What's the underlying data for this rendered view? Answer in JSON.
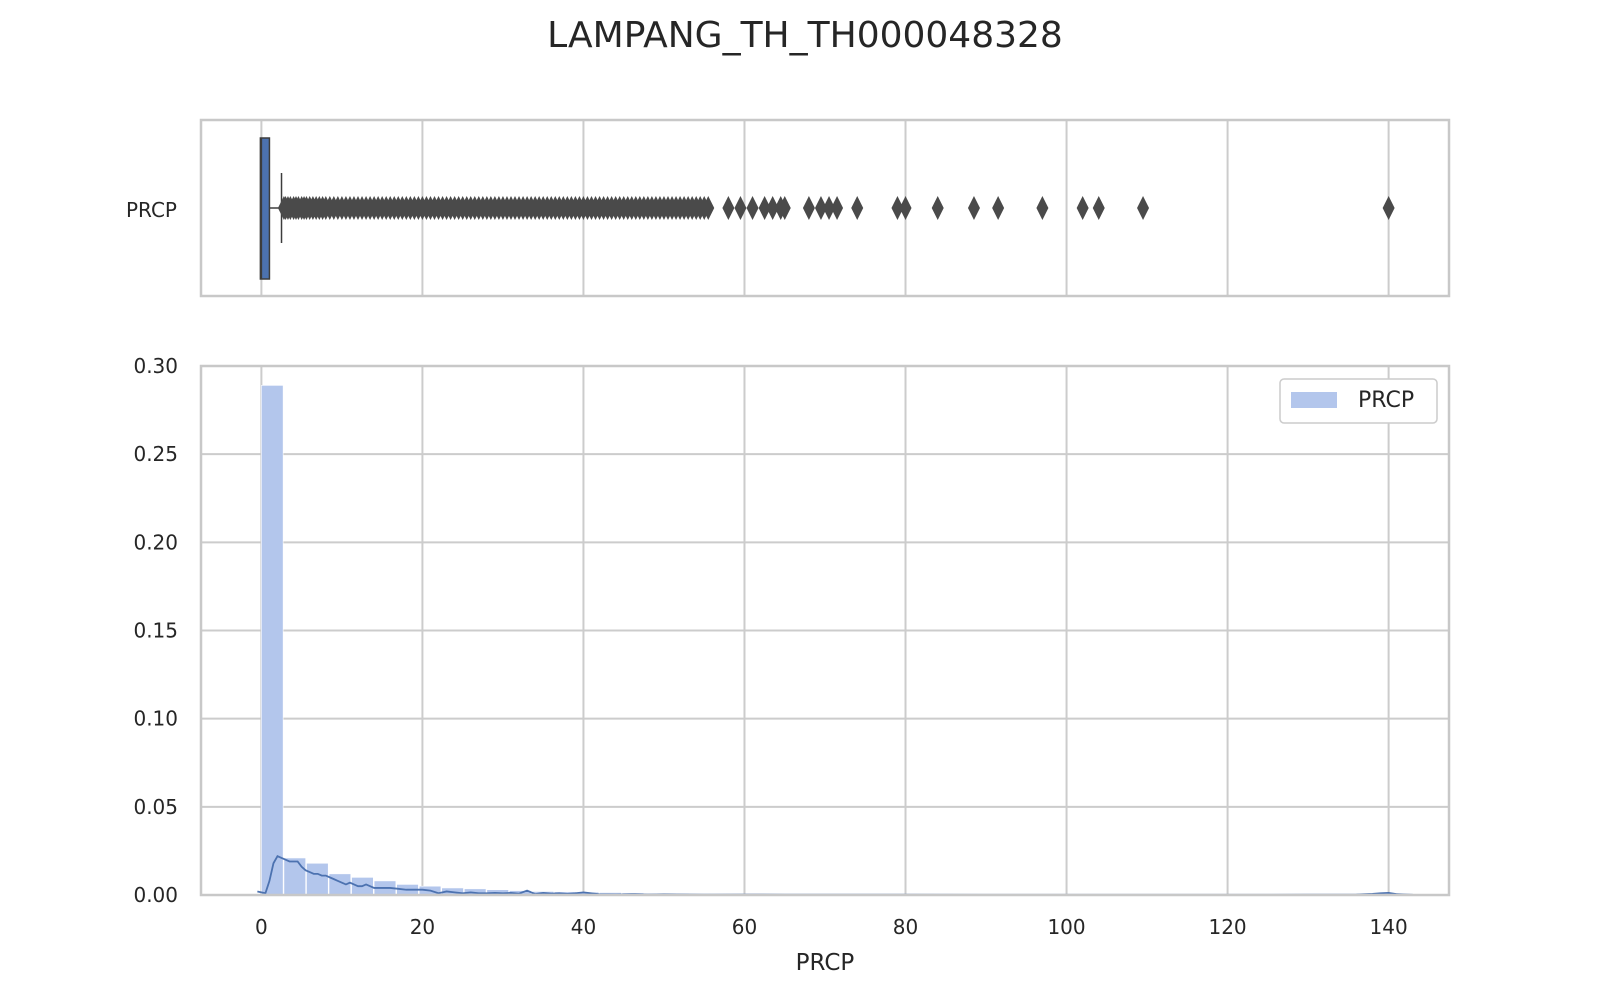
{
  "chart_data": {
    "title": "LAMPANG_TH_TH000048328",
    "colors": {
      "box": "#4c72b0",
      "hist": "#b3c6ec",
      "kde": "#4c72b0",
      "outlier": "#4a4a4a",
      "grid": "#cccccc",
      "spine": "#c8c8c8"
    },
    "box": {
      "type": "box",
      "orientation": "horizontal",
      "category_label": "PRCP",
      "q1": 0.0,
      "median": 0.0,
      "q3": 1.0,
      "whisker_low": 0.0,
      "whisker_high": 2.5,
      "outliers": [
        2.8,
        3,
        3.3,
        3.6,
        4,
        4.3,
        4.6,
        5,
        5.3,
        5.6,
        6,
        6.4,
        6.8,
        7.2,
        7.6,
        8,
        8.5,
        9,
        9.5,
        10,
        10.5,
        11,
        11.5,
        12,
        12.5,
        13,
        13.5,
        14,
        14.5,
        15,
        15.5,
        16,
        16.5,
        17,
        17.5,
        18,
        18.5,
        19,
        19.5,
        20,
        20.5,
        21,
        21.5,
        22,
        22.5,
        23,
        23.5,
        24,
        24.5,
        25,
        25.5,
        26,
        26.5,
        27,
        27.5,
        28,
        28.5,
        29,
        29.5,
        30,
        30.5,
        31,
        31.5,
        32,
        32.5,
        33,
        33.5,
        34,
        34.5,
        35,
        35.5,
        36,
        36.5,
        37,
        37.5,
        38,
        38.5,
        39,
        39.5,
        40,
        40.5,
        41,
        41.5,
        42,
        42.5,
        43,
        43.5,
        44,
        44.5,
        45,
        45.5,
        46,
        46.5,
        47,
        47.5,
        48,
        48.5,
        49,
        49.5,
        50,
        50.5,
        51,
        51.5,
        52,
        52.5,
        53,
        53.5,
        54,
        54.5,
        55,
        55.5,
        58,
        59.5,
        61,
        62.5,
        63.5,
        64.5,
        65,
        68,
        69.5,
        70.5,
        71.5,
        74,
        79,
        80,
        84,
        88.5,
        91.5,
        97,
        102,
        104,
        109.5,
        140
      ],
      "xlim": [
        -7.5,
        147.5
      ]
    },
    "hist": {
      "type": "bar",
      "series_name": "PRCP",
      "xlabel": "PRCP",
      "ylabel": "",
      "xlim": [
        -7.5,
        147.5
      ],
      "ylim": [
        0,
        0.3
      ],
      "x_ticks": [
        0,
        20,
        40,
        60,
        80,
        100,
        120,
        140
      ],
      "y_ticks": [
        "0.00",
        "0.05",
        "0.10",
        "0.15",
        "0.20",
        "0.25",
        "0.30"
      ],
      "bin_width": 2.8,
      "bin_start": 0,
      "values": [
        0.289,
        0.021,
        0.018,
        0.012,
        0.01,
        0.008,
        0.006,
        0.005,
        0.004,
        0.0035,
        0.003,
        0.0025,
        0.002,
        0.0018,
        0.0016,
        0.0014,
        0.0012,
        0.001,
        0.0009,
        0.0008,
        0.0007,
        0.0006,
        0.0005,
        0.0005,
        0.0004,
        0.0004,
        0.0003,
        0.0003,
        0.0003,
        0.0003,
        0.0002,
        0.0002,
        0.0002,
        0.0002,
        0.0002,
        0.0002,
        0.0001,
        0.0001,
        0.0001,
        0.0001,
        0.0001,
        0.0001,
        0.0001,
        0.0001,
        0.0001,
        0.0001,
        0.0001,
        0.0001,
        0.0001,
        0.0001
      ],
      "kde": {
        "x": [
          -0.5,
          0,
          0.5,
          1,
          1.5,
          2,
          2.5,
          3,
          3.5,
          4,
          4.5,
          5,
          5.5,
          6,
          6.5,
          7,
          7.5,
          8,
          8.5,
          9,
          9.5,
          10,
          10.5,
          11,
          11.5,
          12,
          12.5,
          13,
          13.5,
          14,
          15,
          16,
          17,
          18,
          19,
          20,
          21,
          22,
          23,
          24,
          25,
          26,
          27,
          28,
          29,
          30,
          31,
          32,
          33,
          34,
          35,
          36,
          37,
          38,
          39,
          40,
          42,
          44,
          46,
          48,
          50,
          55,
          60,
          65,
          70,
          80,
          90,
          100,
          110,
          120,
          130,
          136,
          138,
          139,
          140,
          141,
          143
        ],
        "y": [
          0.002,
          0.0015,
          0.001,
          0.008,
          0.018,
          0.022,
          0.021,
          0.02,
          0.019,
          0.019,
          0.019,
          0.016,
          0.014,
          0.013,
          0.012,
          0.012,
          0.011,
          0.011,
          0.01,
          0.009,
          0.008,
          0.007,
          0.006,
          0.007,
          0.006,
          0.005,
          0.005,
          0.006,
          0.005,
          0.004,
          0.004,
          0.004,
          0.0035,
          0.003,
          0.003,
          0.003,
          0.0025,
          0.001,
          0.002,
          0.0015,
          0.001,
          0.0015,
          0.001,
          0.001,
          0.0012,
          0.001,
          0.0012,
          0.0008,
          0.0025,
          0.0005,
          0.0012,
          0.0008,
          0.001,
          0.0006,
          0.001,
          0.0015,
          0.0004,
          0.0003,
          0.0005,
          0.0003,
          0.0004,
          0.0002,
          0.0003,
          0.0002,
          0.0002,
          0.0002,
          0.0001,
          0.0001,
          0.0001,
          0.0001,
          0.0002,
          0.0003,
          0.0006,
          0.001,
          0.0012,
          0.0005,
          0.0001
        ]
      },
      "legend": {
        "label": "PRCP",
        "placement": "top-right"
      }
    }
  }
}
